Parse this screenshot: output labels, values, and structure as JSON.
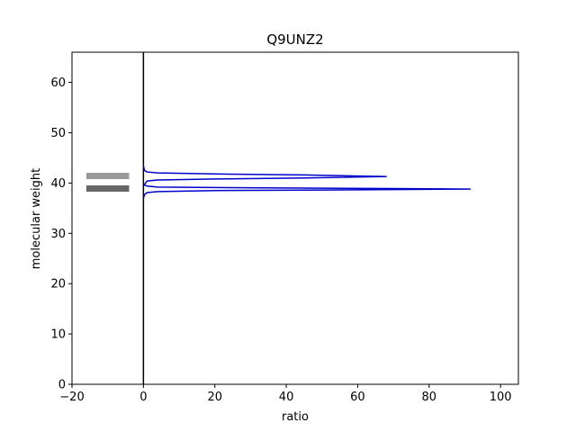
{
  "chart_data": {
    "type": "line",
    "title": "Q9UNZ2",
    "xlabel": "ratio",
    "ylabel": "molecular weight",
    "xlim": [
      -20,
      105
    ],
    "ylim": [
      0,
      66
    ],
    "x_ticks": [
      -20,
      0,
      20,
      40,
      60,
      80,
      100
    ],
    "x_tick_labels": [
      "−20",
      "0",
      "20",
      "40",
      "60",
      "80",
      "100"
    ],
    "y_ticks": [
      0,
      10,
      20,
      30,
      40,
      50,
      60
    ],
    "y_tick_labels": [
      "0",
      "10",
      "20",
      "30",
      "40",
      "50",
      "60"
    ],
    "grid": false,
    "series": [
      {
        "color": "#0000cc",
        "x": [
          0,
          0.3,
          1.0,
          4.0,
          20.0,
          45.0,
          68.0,
          45.0,
          20.0,
          4.0,
          1.0,
          0.2,
          1.0,
          4.0,
          20.0,
          45.0,
          70.0,
          91.5,
          70.0,
          45.0,
          20.0,
          4.0,
          1.0,
          0.3,
          0
        ],
        "y": [
          43.4,
          42.5,
          42.2,
          42.0,
          41.8,
          41.6,
          41.3,
          41.0,
          40.8,
          40.6,
          40.4,
          39.6,
          39.4,
          39.2,
          39.1,
          39.0,
          38.9,
          38.8,
          38.7,
          38.6,
          38.5,
          38.3,
          38.1,
          37.7,
          37.0
        ]
      }
    ],
    "vertical_line": {
      "x": 0,
      "color": "#000000"
    },
    "bands": [
      {
        "y": 41.4,
        "color": "#999999"
      },
      {
        "y": 38.9,
        "color": "#666666"
      }
    ],
    "band_x_range": [
      -16,
      -4
    ]
  }
}
